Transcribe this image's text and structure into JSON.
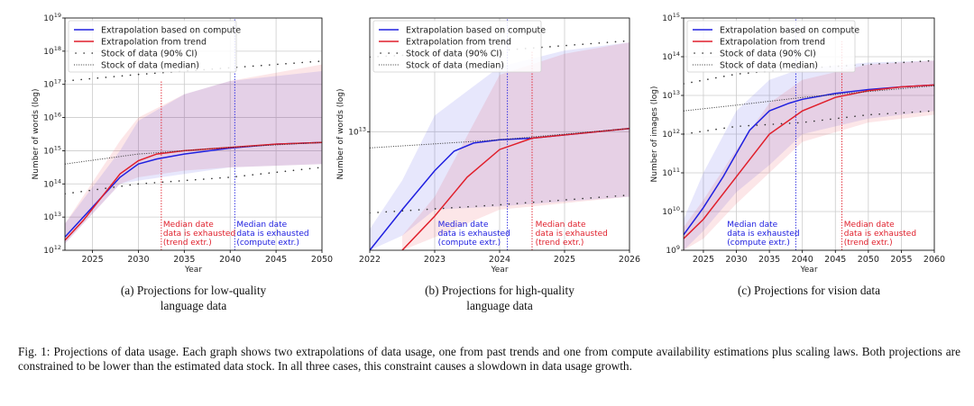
{
  "figure": {
    "caption_label": "Fig. 1:",
    "caption_text": "Projections of data usage. Each graph shows two extrapolations of data usage, one from past trends and one from compute availability estimations plus scaling laws. Both projections are constrained to be lower than the estimated data stock. In all three cases, this constraint causes a slowdown in data usage growth."
  },
  "legend_labels": {
    "compute": "Extrapolation based on compute",
    "trend": "Extrapolation from trend",
    "ci": "Stock of data (90% CI)",
    "median": "Stock of data (median)"
  },
  "colors": {
    "compute": "#2020e0",
    "trend": "#e01f2b",
    "stock": "#333333",
    "grid": "#cccccc"
  },
  "chart_data": [
    {
      "type": "line",
      "subcaption": [
        "(a) Projections for low-quality",
        "language data"
      ],
      "xlabel": "Year",
      "ylabel": "Number of words (log)",
      "xlim": [
        2022,
        2050
      ],
      "ylim_log10": [
        12,
        19
      ],
      "xticks": [
        2025,
        2030,
        2035,
        2040,
        2045,
        2050
      ],
      "yticks": [
        12,
        13,
        14,
        15,
        16,
        17,
        18,
        19
      ],
      "series": [
        {
          "name": "Extrapolation based on compute",
          "key": "compute",
          "x": [
            2022,
            2024,
            2026,
            2028,
            2030,
            2032,
            2035,
            2040,
            2045,
            2050
          ],
          "log10y": [
            12.4,
            13.0,
            13.6,
            14.2,
            14.6,
            14.75,
            14.9,
            15.08,
            15.2,
            15.25
          ]
        },
        {
          "name": "Extrapolation from trend",
          "key": "trend",
          "x": [
            2022,
            2024,
            2026,
            2028,
            2030,
            2032,
            2035,
            2040,
            2045,
            2050
          ],
          "log10y": [
            12.3,
            12.9,
            13.6,
            14.3,
            14.7,
            14.9,
            15.0,
            15.1,
            15.2,
            15.25
          ]
        },
        {
          "name": "Stock of data (median)",
          "key": "median",
          "x": [
            2022,
            2030,
            2040,
            2050
          ],
          "log10y": [
            14.6,
            14.9,
            15.1,
            15.25
          ]
        },
        {
          "name": "Stock of data (90% CI) upper",
          "key": "ci",
          "x": [
            2022,
            2030,
            2040,
            2050
          ],
          "log10y": [
            17.1,
            17.3,
            17.5,
            17.7
          ]
        },
        {
          "name": "Stock of data (90% CI) lower",
          "key": "ci",
          "x": [
            2022,
            2030,
            2040,
            2050
          ],
          "log10y": [
            13.7,
            14.0,
            14.2,
            14.5
          ]
        }
      ],
      "bands": [
        {
          "key": "trend",
          "x": [
            2022,
            2028,
            2030,
            2035,
            2040,
            2050
          ],
          "upper": [
            12.8,
            15.3,
            16.0,
            16.7,
            17.1,
            17.6
          ],
          "lower": [
            12.2,
            14.0,
            14.2,
            14.4,
            14.5,
            14.6
          ]
        },
        {
          "key": "compute",
          "x": [
            2022,
            2028,
            2030,
            2035,
            2040,
            2050
          ],
          "upper": [
            12.8,
            15.0,
            15.9,
            16.7,
            17.1,
            17.4
          ],
          "lower": [
            12.2,
            14.0,
            14.1,
            14.3,
            14.5,
            14.6
          ]
        }
      ],
      "vlines": [
        {
          "key": "trend",
          "x": 2032.5,
          "y_from": 12,
          "y_to": 17.1
        },
        {
          "key": "compute",
          "x": 2040.5,
          "y_from": 12,
          "y_to": 19
        }
      ],
      "annotations": [
        {
          "key": "trend",
          "x": 2032.7,
          "lines": [
            "Median date",
            "data is exhausted",
            "(trend extr.)"
          ]
        },
        {
          "key": "compute",
          "x": 2040.7,
          "lines": [
            "Median date",
            "data is exhausted",
            "(compute extr.)"
          ]
        }
      ]
    },
    {
      "type": "line",
      "subcaption": [
        "(b) Projections for high-quality",
        "language data"
      ],
      "xlabel": "Year",
      "ylabel": "Number of words (log)",
      "xlim": [
        2022,
        2026
      ],
      "ylim_log10": [
        12.27,
        13.7
      ],
      "xticks": [
        2022,
        2023,
        2024,
        2025,
        2026
      ],
      "yticks": [
        13
      ],
      "series": [
        {
          "name": "Extrapolation based on compute",
          "key": "compute",
          "x": [
            2022,
            2022.5,
            2023,
            2023.3,
            2023.6,
            2024,
            2024.5,
            2025,
            2026
          ],
          "log10y": [
            12.27,
            12.52,
            12.76,
            12.88,
            12.93,
            12.95,
            12.96,
            12.98,
            13.02
          ]
        },
        {
          "name": "Extrapolation from trend",
          "key": "trend",
          "x": [
            2022.5,
            2023,
            2023.5,
            2024,
            2024.5,
            2025,
            2026
          ],
          "log10y": [
            12.27,
            12.48,
            12.72,
            12.89,
            12.96,
            12.98,
            13.02
          ]
        },
        {
          "name": "Stock of data (median)",
          "key": "median",
          "x": [
            2022,
            2024,
            2026
          ],
          "log10y": [
            12.9,
            12.95,
            13.02
          ]
        },
        {
          "name": "Stock of data (90% CI) upper",
          "key": "ci",
          "x": [
            2022,
            2024,
            2026
          ],
          "log10y": [
            13.46,
            13.5,
            13.56
          ]
        },
        {
          "name": "Stock of data (90% CI) lower",
          "key": "ci",
          "x": [
            2022,
            2024,
            2026
          ],
          "log10y": [
            12.5,
            12.55,
            12.61
          ]
        }
      ],
      "bands": [
        {
          "key": "compute",
          "x": [
            2022,
            2022.5,
            2023,
            2024,
            2025,
            2026
          ],
          "upper": [
            12.4,
            12.7,
            13.1,
            13.4,
            13.5,
            13.55
          ],
          "lower": [
            12.27,
            12.36,
            12.52,
            12.54,
            12.57,
            12.6
          ]
        },
        {
          "key": "trend",
          "x": [
            2022.5,
            2023,
            2024,
            2025,
            2026
          ],
          "upper": [
            12.36,
            12.6,
            13.35,
            13.48,
            13.55
          ],
          "lower": [
            12.27,
            12.35,
            12.52,
            12.56,
            12.6
          ]
        }
      ],
      "vlines": [
        {
          "key": "compute",
          "x": 2024.12,
          "y_from": 12.27,
          "y_to": 13.7
        },
        {
          "key": "trend",
          "x": 2024.5,
          "y_from": 12.27,
          "y_to": 13.5
        }
      ],
      "annotations": [
        {
          "key": "compute",
          "x": 2023.05,
          "lines": [
            "Median date",
            "data is exhausted",
            "(compute extr.)"
          ]
        },
        {
          "key": "trend",
          "x": 2024.55,
          "lines": [
            "Median date",
            "data is exhausted",
            "(trend extr.)"
          ]
        }
      ]
    },
    {
      "type": "line",
      "subcaption": [
        "(c) Projections for vision data",
        ""
      ],
      "xlabel": "Year",
      "ylabel": "Number of images (log)",
      "xlim": [
        2022,
        2060
      ],
      "ylim_log10": [
        9,
        15
      ],
      "xticks": [
        2025,
        2030,
        2035,
        2040,
        2045,
        2050,
        2055,
        2060
      ],
      "yticks": [
        9,
        10,
        11,
        12,
        13,
        14,
        15
      ],
      "series": [
        {
          "name": "Extrapolation based on compute",
          "key": "compute",
          "x": [
            2022,
            2025,
            2028,
            2030,
            2032,
            2035,
            2038,
            2040,
            2045,
            2050,
            2055,
            2060
          ],
          "log10y": [
            9.4,
            10.1,
            10.9,
            11.5,
            12.1,
            12.6,
            12.8,
            12.9,
            13.05,
            13.15,
            13.22,
            13.27
          ]
        },
        {
          "name": "Extrapolation from trend",
          "key": "trend",
          "x": [
            2022,
            2025,
            2030,
            2035,
            2040,
            2045,
            2050,
            2055,
            2060
          ],
          "log10y": [
            9.3,
            9.8,
            10.9,
            12.0,
            12.6,
            12.95,
            13.12,
            13.22,
            13.27
          ]
        },
        {
          "name": "Stock of data (median)",
          "key": "median",
          "x": [
            2022,
            2030,
            2040,
            2050,
            2060
          ],
          "log10y": [
            12.6,
            12.75,
            12.95,
            13.1,
            13.25
          ]
        },
        {
          "name": "Stock of data (90% CI) upper",
          "key": "ci",
          "x": [
            2022,
            2030,
            2040,
            2050,
            2060
          ],
          "log10y": [
            13.3,
            13.55,
            13.7,
            13.8,
            13.9
          ]
        },
        {
          "name": "Stock of data (90% CI) lower",
          "key": "ci",
          "x": [
            2022,
            2030,
            2040,
            2050,
            2060
          ],
          "log10y": [
            12.0,
            12.2,
            12.3,
            12.5,
            12.6
          ]
        }
      ],
      "bands": [
        {
          "key": "compute",
          "x": [
            2022,
            2025,
            2030,
            2035,
            2040,
            2050,
            2060
          ],
          "upper": [
            9.8,
            11.0,
            12.6,
            13.4,
            13.7,
            13.85,
            13.9
          ],
          "lower": [
            9.0,
            9.5,
            10.5,
            11.2,
            12.0,
            12.4,
            12.6
          ]
        },
        {
          "key": "trend",
          "x": [
            2022,
            2025,
            2030,
            2035,
            2040,
            2050,
            2060
          ],
          "upper": [
            9.6,
            10.3,
            11.6,
            12.8,
            13.4,
            13.8,
            13.9
          ],
          "lower": [
            9.0,
            9.3,
            10.2,
            11.0,
            11.8,
            12.3,
            12.5
          ]
        }
      ],
      "vlines": [
        {
          "key": "compute",
          "x": 2039,
          "y_from": 9,
          "y_to": 15
        },
        {
          "key": "trend",
          "x": 2046,
          "y_from": 9,
          "y_to": 14.4
        }
      ],
      "annotations": [
        {
          "key": "compute",
          "x": 2028.6,
          "lines": [
            "Median date",
            "data is exhausted",
            "(compute extr.)"
          ]
        },
        {
          "key": "trend",
          "x": 2046.3,
          "lines": [
            "Median date",
            "data is exhausted",
            "(trend extr.)"
          ]
        }
      ]
    }
  ]
}
